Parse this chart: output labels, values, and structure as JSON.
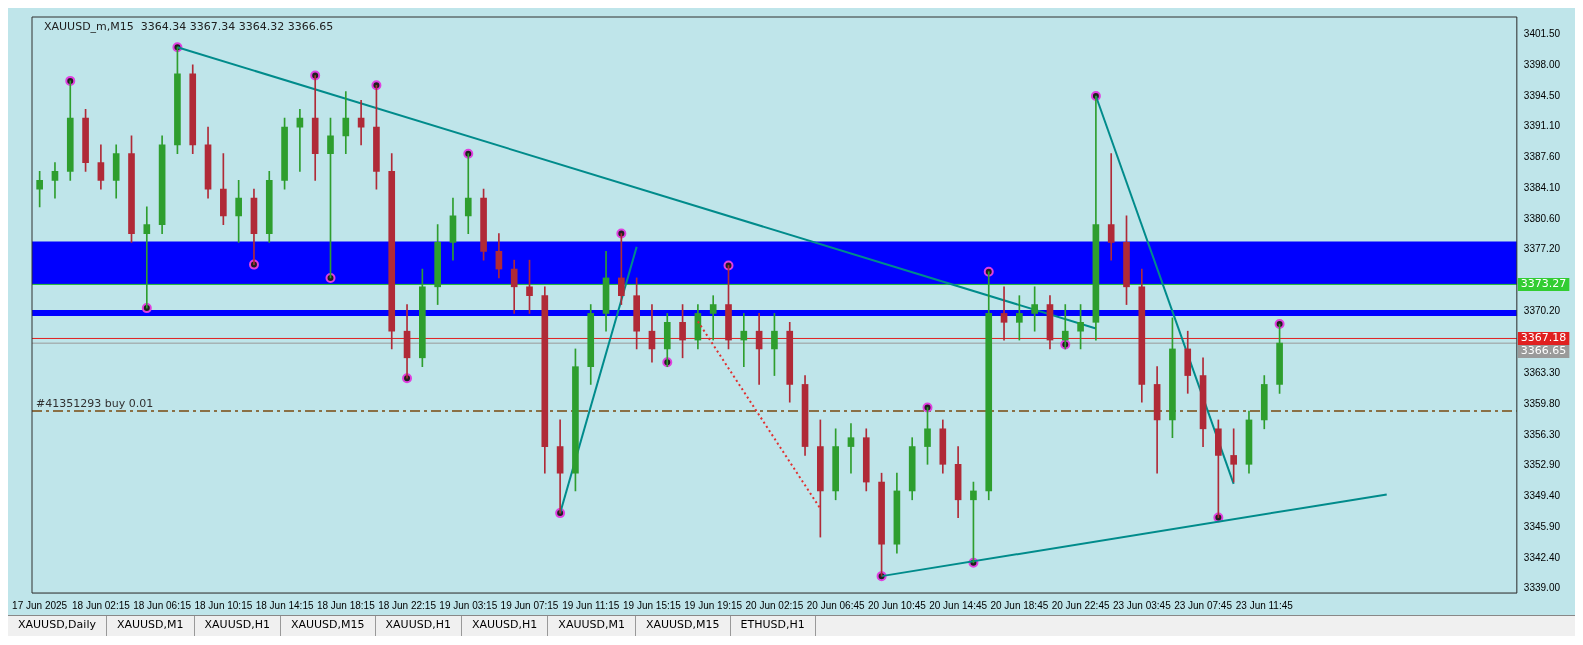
{
  "chart_data": {
    "type": "candlestick",
    "title": "XAUUSD_m,M15  3364.34 3367.34 3364.32 3366.65",
    "categories": [
      "17 Jun 2025",
      null,
      null,
      null,
      "18 Jun 02:15",
      null,
      null,
      null,
      "18 Jun 06:15",
      null,
      null,
      null,
      "18 Jun 10:15",
      null,
      null,
      null,
      "18 Jun 14:15",
      null,
      null,
      null,
      "18 Jun 18:15",
      null,
      null,
      null,
      "18 Jun 22:15",
      null,
      null,
      null,
      "19 Jun 03:15",
      null,
      null,
      null,
      "19 Jun 07:15",
      null,
      null,
      null,
      "19 Jun 11:15",
      null,
      null,
      null,
      "19 Jun 15:15",
      null,
      null,
      null,
      "19 Jun 19:15",
      null,
      null,
      null,
      "20 Jun 02:15",
      null,
      null,
      null,
      "20 Jun 06:45",
      null,
      null,
      null,
      "20 Jun 10:45",
      null,
      null,
      null,
      "20 Jun 14:45",
      null,
      null,
      null,
      "20 Jun 18:45",
      null,
      null,
      null,
      "20 Jun 22:45",
      null,
      null,
      null,
      "23 Jun 03:45",
      null,
      null,
      null,
      "23 Jun 07:45",
      null,
      null,
      null,
      "23 Jun 11:45",
      null,
      null,
      null,
      null,
      null,
      null,
      null,
      null,
      null,
      null,
      null,
      null,
      null,
      null,
      null,
      null
    ],
    "ylim": [
      3338.5,
      3403.4
    ],
    "yticks": [
      {
        "value": 3401.5,
        "label": "3401.50"
      },
      {
        "value": 3398,
        "label": "3398.00"
      },
      {
        "value": 3394.5,
        "label": "3394.50"
      },
      {
        "value": 3391.1,
        "label": "3391.10"
      },
      {
        "value": 3387.6,
        "label": "3387.60"
      },
      {
        "value": 3384.1,
        "label": "3384.10"
      },
      {
        "value": 3380.6,
        "label": "3380.60"
      },
      {
        "value": 3377.2,
        "label": "3377.20"
      },
      {
        "value": 3370.2,
        "label": "3370.20"
      },
      {
        "value": 3363.3,
        "label": "3363.30"
      },
      {
        "value": 3359.8,
        "label": "3359.80"
      },
      {
        "value": 3356.3,
        "label": "3356.30"
      },
      {
        "value": 3352.9,
        "label": "3352.90"
      },
      {
        "value": 3349.4,
        "label": "3349.40"
      },
      {
        "value": 3345.9,
        "label": "3345.90"
      },
      {
        "value": 3342.4,
        "label": "3342.40"
      },
      {
        "value": 3339,
        "label": "3339.00"
      }
    ],
    "bands": [
      {
        "axis": "y",
        "from": 3373.2,
        "to": 3378.1,
        "color": "#0000ff"
      },
      {
        "axis": "y",
        "from": 3369.7,
        "to": 3370.4,
        "color": "#0000ff"
      }
    ],
    "series": [
      {
        "ohlc": [
          [
            3384,
            3386,
            3382,
            3385
          ],
          [
            3385,
            3387,
            3383,
            3386
          ],
          [
            3386,
            3396.2,
            3385,
            3392
          ],
          [
            3392,
            3393,
            3386,
            3387
          ],
          [
            3387,
            3389,
            3384,
            3385
          ],
          [
            3385,
            3389,
            3383,
            3388
          ],
          [
            3388,
            3390,
            3378,
            3379
          ],
          [
            3379,
            3382,
            3370.6,
            3380
          ],
          [
            3380,
            3390,
            3379,
            3389
          ],
          [
            3389,
            3400,
            3388,
            3397
          ],
          [
            3397,
            3398,
            3388,
            3389
          ],
          [
            3389,
            3391,
            3383,
            3384
          ],
          [
            3384,
            3388,
            3380,
            3381
          ],
          [
            3381,
            3385,
            3378,
            3383
          ],
          [
            3383,
            3384,
            3375.5,
            3379
          ],
          [
            3379,
            3386,
            3378,
            3385
          ],
          [
            3385,
            3392,
            3384,
            3391
          ],
          [
            3391,
            3393,
            3386,
            3392
          ],
          [
            3392,
            3396.8,
            3385,
            3388
          ],
          [
            3388,
            3392,
            3374,
            3390
          ],
          [
            3390,
            3395,
            3388,
            3392
          ],
          [
            3392,
            3394,
            3389,
            3391
          ],
          [
            3391,
            3395.7,
            3384,
            3386
          ],
          [
            3386,
            3388,
            3366,
            3368
          ],
          [
            3368,
            3371,
            3362.7,
            3365
          ],
          [
            3365,
            3375,
            3364,
            3373
          ],
          [
            3373,
            3380,
            3371,
            3378
          ],
          [
            3378,
            3383,
            3376,
            3381
          ],
          [
            3381,
            3388,
            3379,
            3383
          ],
          [
            3383,
            3384,
            3376,
            3377
          ],
          [
            3377,
            3379,
            3374,
            3375
          ],
          [
            3375,
            3376,
            3370,
            3373
          ],
          [
            3373,
            3376,
            3370,
            3372
          ],
          [
            3372,
            3373,
            3352,
            3355
          ],
          [
            3355,
            3358,
            3347.5,
            3352
          ],
          [
            3352,
            3366,
            3350,
            3364
          ],
          [
            3364,
            3371,
            3362,
            3370
          ],
          [
            3370,
            3377,
            3368,
            3374
          ],
          [
            3374,
            3379,
            3371,
            3372
          ],
          [
            3372,
            3374,
            3366,
            3368
          ],
          [
            3368,
            3371,
            3364.5,
            3366
          ],
          [
            3366,
            3370,
            3364,
            3369
          ],
          [
            3369,
            3371,
            3365,
            3367
          ],
          [
            3367,
            3371,
            3366,
            3370
          ],
          [
            3370,
            3372,
            3367,
            3371
          ],
          [
            3371,
            3375.4,
            3366,
            3367
          ],
          [
            3367,
            3370,
            3364,
            3368
          ],
          [
            3368,
            3370,
            3362,
            3366
          ],
          [
            3366,
            3370,
            3363,
            3368
          ],
          [
            3368,
            3369,
            3360,
            3362
          ],
          [
            3362,
            3363,
            3354,
            3355
          ],
          [
            3355,
            3358,
            3344.8,
            3350
          ],
          [
            3350,
            3357,
            3349,
            3355
          ],
          [
            3355,
            3357.6,
            3352,
            3356
          ],
          [
            3356,
            3357,
            3350,
            3351
          ],
          [
            3351,
            3352,
            3340.4,
            3344
          ],
          [
            3344,
            3352,
            3343,
            3350
          ],
          [
            3350,
            3356,
            3349,
            3355
          ],
          [
            3355,
            3359.4,
            3353,
            3357
          ],
          [
            3357,
            3358,
            3352,
            3353
          ],
          [
            3353,
            3355,
            3347,
            3349
          ],
          [
            3349,
            3351,
            3341.9,
            3350
          ],
          [
            3350,
            3374.7,
            3349,
            3370
          ],
          [
            3370,
            3373,
            3367,
            3369
          ],
          [
            3369,
            3372,
            3367,
            3370
          ],
          [
            3370,
            3373,
            3368,
            3371
          ],
          [
            3371,
            3372,
            3366,
            3367
          ],
          [
            3367,
            3371,
            3366,
            3368
          ],
          [
            3368,
            3371,
            3366,
            3369
          ],
          [
            3369,
            3394.5,
            3367,
            3380
          ],
          [
            3380,
            3388,
            3376,
            3378
          ],
          [
            3378,
            3381,
            3371,
            3373
          ],
          [
            3373,
            3375,
            3360,
            3362
          ],
          [
            3362,
            3364,
            3352,
            3358
          ],
          [
            3358,
            3369.5,
            3356,
            3366
          ],
          [
            3366,
            3368,
            3361,
            3363
          ],
          [
            3363,
            3365,
            3355,
            3357
          ],
          [
            3357,
            3358,
            3347,
            3354
          ],
          [
            3354,
            3357,
            3351,
            3353
          ],
          [
            3353,
            3359,
            3352,
            3358
          ],
          [
            3358,
            3363,
            3357,
            3362
          ],
          [
            3362,
            3368.8,
            3361,
            3366.65
          ],
          null,
          null,
          null,
          null,
          null,
          null,
          null,
          null,
          null,
          null,
          null,
          null,
          null,
          null,
          null
        ],
        "colors": [
          "#2e9e2e",
          "#2e9e2e",
          "#2e9e2e",
          "#b02a37",
          "#b02a37",
          "#2e9e2e",
          "#b02a37",
          "#2e9e2e",
          "#2e9e2e",
          "#2e9e2e",
          "#b02a37",
          "#b02a37",
          "#b02a37",
          "#2e9e2e",
          "#b02a37",
          "#2e9e2e",
          "#2e9e2e",
          "#2e9e2e",
          "#b02a37",
          "#2e9e2e",
          "#2e9e2e",
          "#b02a37",
          "#b02a37",
          "#b02a37",
          "#b02a37",
          "#2e9e2e",
          "#2e9e2e",
          "#2e9e2e",
          "#2e9e2e",
          "#b02a37",
          "#b02a37",
          "#b02a37",
          "#b02a37",
          "#b02a37",
          "#b02a37",
          "#2e9e2e",
          "#2e9e2e",
          "#2e9e2e",
          "#b02a37",
          "#b02a37",
          "#b02a37",
          "#2e9e2e",
          "#b02a37",
          "#2e9e2e",
          "#2e9e2e",
          "#b02a37",
          "#2e9e2e",
          "#b02a37",
          "#2e9e2e",
          "#b02a37",
          "#b02a37",
          "#b02a37",
          "#2e9e2e",
          "#2e9e2e",
          "#b02a37",
          "#b02a37",
          "#2e9e2e",
          "#2e9e2e",
          "#2e9e2e",
          "#b02a37",
          "#b02a37",
          "#2e9e2e",
          "#2e9e2e",
          "#b02a37",
          "#2e9e2e",
          "#2e9e2e",
          "#b02a37",
          "#2e9e2e",
          "#2e9e2e",
          "#2e9e2e",
          "#b02a37",
          "#b02a37",
          "#b02a37",
          "#b02a37",
          "#2e9e2e",
          "#b02a37",
          "#b02a37",
          "#b02a37",
          "#b02a37",
          "#2e9e2e",
          "#2e9e2e",
          "#2e9e2e",
          null,
          null,
          null,
          null,
          null,
          null,
          null,
          null,
          null,
          null,
          null,
          null,
          null,
          null,
          null
        ]
      },
      {
        "type": "line",
        "color": "#008b8b",
        "values": [
          null,
          null,
          null,
          null,
          null,
          null,
          null,
          null,
          null,
          3400,
          null,
          null,
          null,
          null,
          null,
          null,
          null,
          null,
          null,
          null,
          null,
          null,
          null,
          null,
          null,
          null,
          null,
          null,
          null,
          null,
          null,
          null,
          null,
          null,
          null,
          null,
          null,
          null,
          null,
          null,
          null,
          null,
          null,
          null,
          null,
          null,
          null,
          null,
          null,
          null,
          null,
          null,
          null,
          null,
          null,
          null,
          null,
          null,
          null,
          null,
          null,
          null,
          null,
          null,
          null,
          null,
          null,
          null,
          null,
          3368.3,
          null,
          null,
          null,
          null,
          null,
          null,
          null,
          null,
          null,
          null,
          null,
          null,
          null,
          null,
          null,
          null,
          null,
          null,
          null,
          null,
          null,
          null,
          null,
          null,
          null,
          null,
          null
        ]
      },
      {
        "type": "line",
        "color": "#008b8b",
        "values": [
          null,
          null,
          null,
          null,
          null,
          null,
          null,
          null,
          null,
          null,
          null,
          null,
          null,
          null,
          null,
          null,
          null,
          null,
          null,
          null,
          null,
          null,
          null,
          null,
          null,
          null,
          null,
          null,
          null,
          null,
          null,
          null,
          null,
          null,
          3347.5,
          null,
          null,
          null,
          null,
          3377.5,
          null,
          null,
          null,
          null,
          null,
          null,
          null,
          null,
          null,
          null,
          null,
          null,
          null,
          null,
          null,
          null,
          null,
          null,
          null,
          null,
          null,
          null,
          null,
          null,
          null,
          null,
          null,
          null,
          null,
          null,
          null,
          null,
          null,
          null,
          null,
          null,
          null,
          null,
          null,
          null,
          null,
          null,
          null,
          null,
          null,
          null,
          null,
          null,
          null,
          null,
          null,
          null,
          null,
          null,
          null,
          null,
          null
        ]
      },
      {
        "type": "line",
        "color": "#008b8b",
        "values": [
          null,
          null,
          null,
          null,
          null,
          null,
          null,
          null,
          null,
          null,
          null,
          null,
          null,
          null,
          null,
          null,
          null,
          null,
          null,
          null,
          null,
          null,
          null,
          null,
          null,
          null,
          null,
          null,
          null,
          null,
          null,
          null,
          null,
          null,
          null,
          null,
          null,
          null,
          null,
          null,
          null,
          null,
          null,
          null,
          null,
          null,
          null,
          null,
          null,
          null,
          null,
          null,
          null,
          null,
          null,
          null,
          null,
          null,
          null,
          null,
          null,
          null,
          null,
          null,
          null,
          null,
          null,
          null,
          null,
          3394.5,
          null,
          null,
          null,
          null,
          null,
          null,
          null,
          null,
          3350.8,
          null,
          null,
          null,
          null,
          null,
          null,
          null,
          null,
          null,
          null,
          null,
          null,
          null,
          null,
          null,
          null,
          null,
          null
        ]
      },
      {
        "type": "line",
        "color": "#008b8b",
        "values": [
          null,
          null,
          null,
          null,
          null,
          null,
          null,
          null,
          null,
          null,
          null,
          null,
          null,
          null,
          null,
          null,
          null,
          null,
          null,
          null,
          null,
          null,
          null,
          null,
          null,
          null,
          null,
          null,
          null,
          null,
          null,
          null,
          null,
          null,
          null,
          null,
          null,
          null,
          null,
          null,
          null,
          null,
          null,
          null,
          null,
          null,
          null,
          null,
          null,
          null,
          null,
          null,
          null,
          null,
          null,
          3340.4,
          null,
          null,
          null,
          null,
          null,
          null,
          null,
          null,
          null,
          null,
          null,
          null,
          null,
          null,
          null,
          null,
          null,
          null,
          null,
          null,
          null,
          null,
          null,
          null,
          null,
          null,
          null,
          null,
          null,
          null,
          null,
          null,
          3349.6,
          null,
          null,
          null,
          null,
          null,
          null,
          null,
          null
        ]
      },
      {
        "type": "line",
        "color": "#e03030",
        "line_style": "dotted",
        "values": [
          null,
          null,
          null,
          null,
          null,
          null,
          null,
          null,
          null,
          null,
          null,
          null,
          null,
          null,
          null,
          null,
          null,
          null,
          null,
          null,
          null,
          null,
          null,
          null,
          null,
          null,
          null,
          null,
          null,
          null,
          null,
          null,
          null,
          null,
          null,
          null,
          null,
          null,
          null,
          null,
          null,
          null,
          null,
          3369.1,
          null,
          null,
          null,
          null,
          null,
          null,
          null,
          3348,
          null,
          null,
          null,
          null,
          null,
          null,
          null,
          null,
          null,
          null,
          null,
          null,
          null,
          null,
          null,
          null,
          null,
          null,
          null,
          null,
          null,
          null,
          null,
          null,
          null,
          null,
          null,
          null,
          null,
          null,
          null,
          null,
          null,
          null,
          null,
          null,
          null,
          null,
          null,
          null,
          null,
          null,
          null,
          null,
          null
        ]
      },
      {
        "type": "scatter",
        "color": "#e040e0",
        "marker": "circle",
        "values": [
          null,
          null,
          3396.2,
          null,
          null,
          null,
          null,
          3370.6,
          null,
          3400,
          null,
          null,
          null,
          null,
          3375.5,
          null,
          null,
          null,
          3396.8,
          3374,
          null,
          null,
          3395.7,
          null,
          3362.7,
          null,
          null,
          null,
          3388,
          null,
          null,
          null,
          null,
          null,
          3347.5,
          null,
          null,
          null,
          3379,
          null,
          null,
          3364.5,
          null,
          null,
          null,
          3375.4,
          null,
          null,
          null,
          null,
          null,
          null,
          null,
          null,
          null,
          3340.4,
          null,
          null,
          3359.4,
          null,
          null,
          3341.9,
          3374.7,
          null,
          null,
          null,
          null,
          3366.5,
          null,
          3394.5,
          null,
          null,
          null,
          null,
          null,
          null,
          null,
          3347,
          null,
          null,
          null,
          3368.8,
          null,
          null,
          null,
          null,
          null,
          null,
          null,
          null,
          null,
          null,
          null,
          null,
          null,
          null,
          null
        ]
      }
    ],
    "ref_lines": [
      {
        "axis": "y",
        "value": 3373.27,
        "label": "3373.27",
        "color": "#32cd32"
      },
      {
        "axis": "y",
        "value": 3367.18,
        "label": "3367.18",
        "color": "#e02020"
      },
      {
        "axis": "y",
        "value": 3366.65,
        "label": "3366.65",
        "color": "#9a9a9a"
      },
      {
        "axis": "y",
        "value": 3359,
        "label": "#41351293 buy 0.01",
        "color": "#7a4a10",
        "line_style": "dashdot"
      }
    ],
    "annotations": [
      "XAUUSD,Daily",
      "XAUUSD,M1",
      "XAUUSD,H1",
      "XAUUSD,M15",
      "XAUUSD,H1",
      "XAUUSD,H1",
      "XAUUSD,M1",
      "XAUUSD,M15",
      "ETHUSD,H1"
    ]
  }
}
